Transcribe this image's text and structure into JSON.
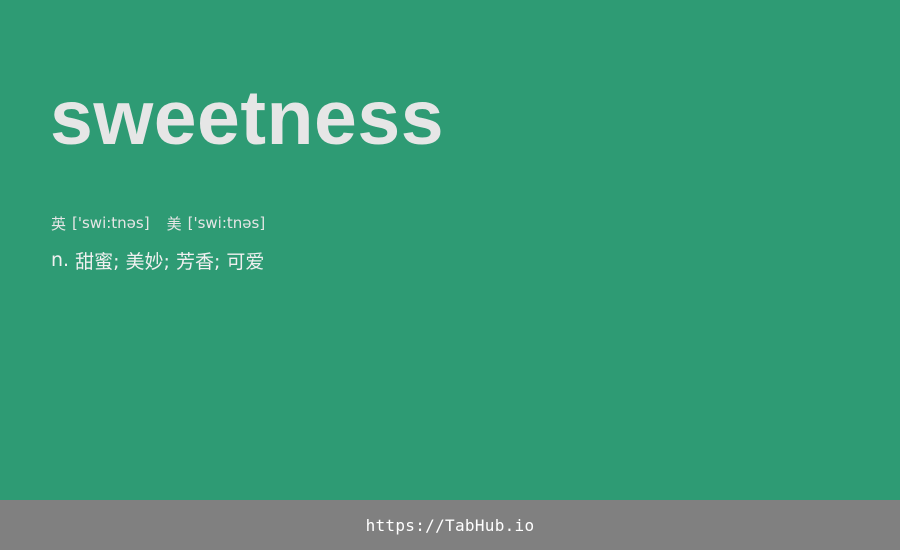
{
  "entry": {
    "word": "sweetness",
    "phonetics": {
      "uk_label": "英",
      "uk_ipa": "['swi:tnəs]",
      "us_label": "美",
      "us_ipa": "['swi:tnəs]"
    },
    "definition": {
      "pos": "n.",
      "meaning": "甜蜜; 美妙; 芳香; 可爱"
    }
  },
  "footer": {
    "link_text": "https://TabHub.io"
  },
  "colors": {
    "background": "#2e9b74",
    "text": "#e6e6e6",
    "footer_background": "#808080",
    "footer_text": "#ffffff"
  }
}
